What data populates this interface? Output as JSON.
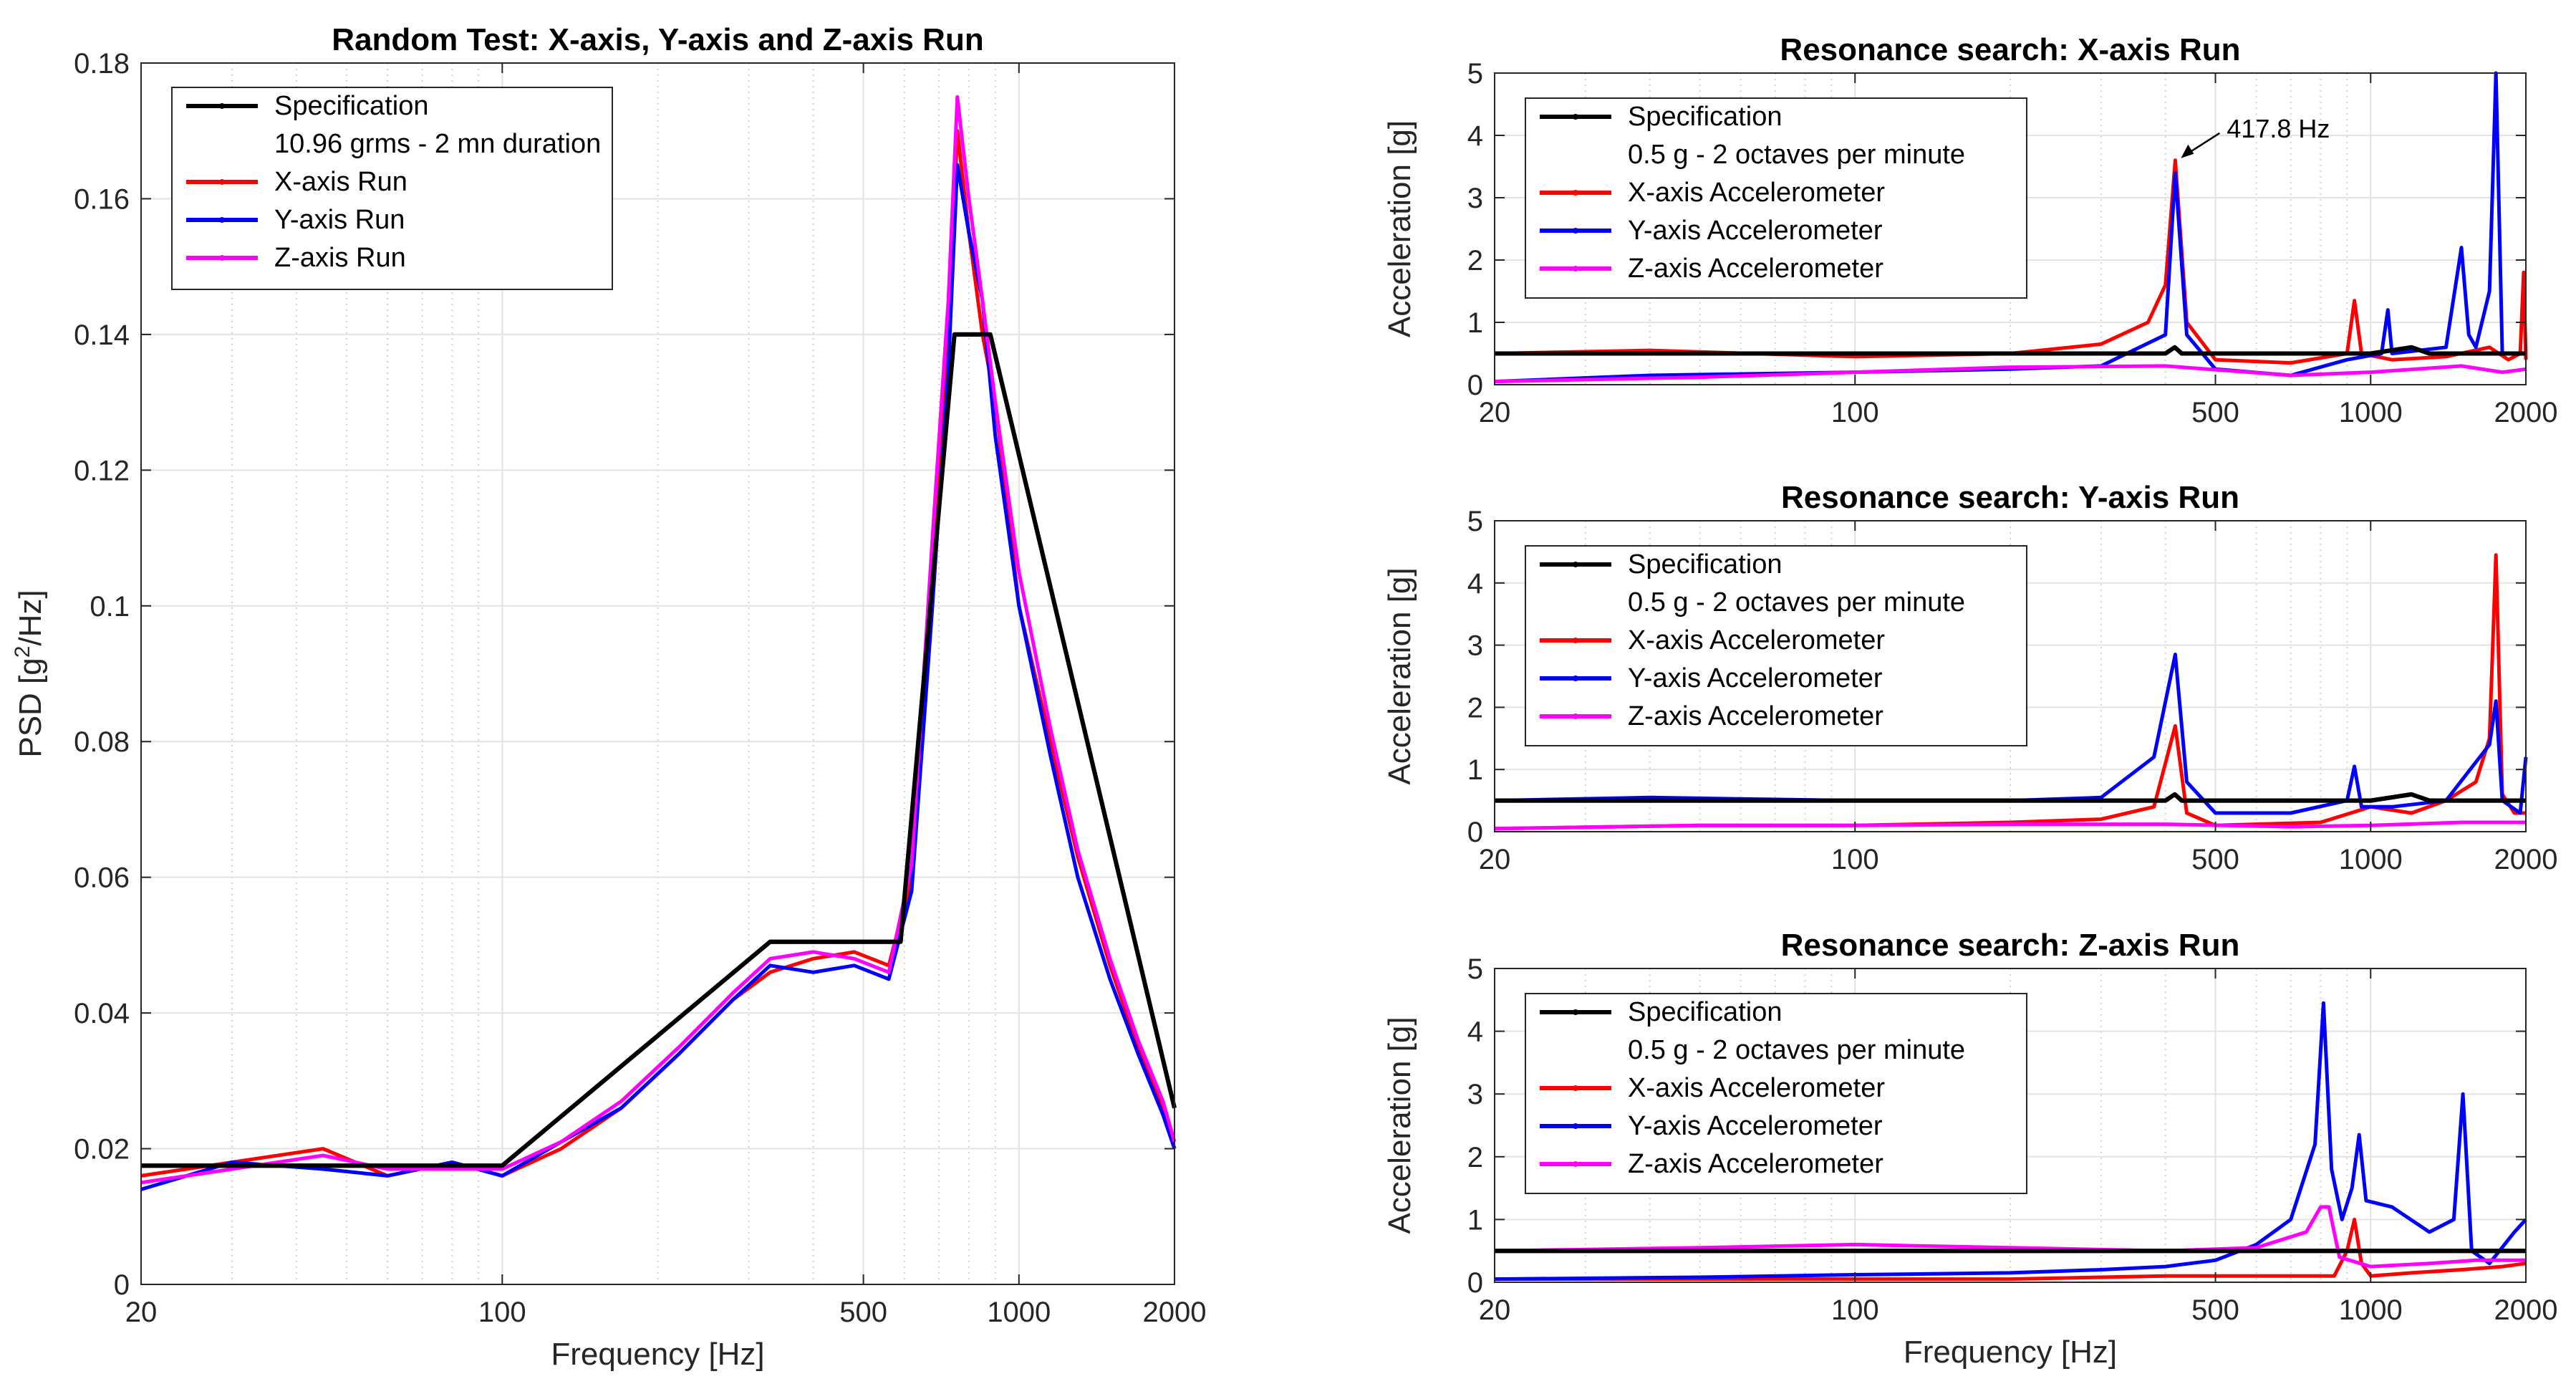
{
  "chart_data": [
    {
      "id": "main",
      "type": "line",
      "title": "Random Test: X-axis, Y-axis and Z-axis Run",
      "xlabel": "Frequency [Hz]",
      "ylabel_main": "PSD [g",
      "ylabel_sup": "2",
      "ylabel_tail": "/Hz]",
      "xscale": "log",
      "xlim": [
        20,
        2000
      ],
      "ylim": [
        0,
        0.18
      ],
      "xticks": [
        20,
        100,
        500,
        1000,
        2000
      ],
      "xtick_labels": [
        "20",
        "100",
        "500",
        "1000",
        "2000"
      ],
      "yticks": [
        0,
        0.02,
        0.04,
        0.06,
        0.08,
        0.1,
        0.12,
        0.14,
        0.16,
        0.18
      ],
      "ytick_labels": [
        "0",
        "0.02",
        "0.04",
        "0.06",
        "0.08",
        "0.1",
        "0.12",
        "0.14",
        "0.16",
        "0.18"
      ],
      "grid": true,
      "legend_position": "top-left",
      "legend": [
        {
          "label": "Specification",
          "color": "#000000",
          "marker": true
        },
        {
          "label": "10.96 grms - 2 mn duration",
          "color": null,
          "marker": false
        },
        {
          "label": "X-axis Run",
          "color": "#ff0000",
          "marker": true
        },
        {
          "label": "Y-axis Run",
          "color": "#0000ff",
          "marker": true
        },
        {
          "label": "Z-axis Run",
          "color": "#ff00ff",
          "marker": true
        }
      ],
      "series": [
        {
          "name": "Specification",
          "color": "#000000",
          "x": [
            20,
            100,
            330,
            590,
            750,
            880,
            2000
          ],
          "y": [
            0.0175,
            0.0175,
            0.0505,
            0.0505,
            0.14,
            0.14,
            0.026
          ]
        },
        {
          "name": "X-axis Run",
          "color": "#ff0000",
          "x": [
            20,
            30,
            45,
            60,
            80,
            100,
            130,
            170,
            220,
            280,
            330,
            400,
            480,
            560,
            620,
            680,
            730,
            760,
            800,
            850,
            900,
            1000,
            1150,
            1300,
            1500,
            1700,
            1900,
            2000
          ],
          "y": [
            0.016,
            0.018,
            0.02,
            0.016,
            0.018,
            0.016,
            0.02,
            0.026,
            0.034,
            0.042,
            0.046,
            0.048,
            0.049,
            0.047,
            0.06,
            0.105,
            0.14,
            0.17,
            0.155,
            0.14,
            0.13,
            0.1,
            0.08,
            0.063,
            0.047,
            0.035,
            0.026,
            0.02
          ]
        },
        {
          "name": "Y-axis Run",
          "color": "#0000ff",
          "x": [
            20,
            30,
            45,
            60,
            80,
            100,
            130,
            170,
            220,
            280,
            330,
            400,
            480,
            560,
            620,
            680,
            730,
            760,
            800,
            850,
            900,
            1000,
            1150,
            1300,
            1500,
            1700,
            1900,
            2000
          ],
          "y": [
            0.014,
            0.018,
            0.017,
            0.016,
            0.018,
            0.016,
            0.021,
            0.026,
            0.034,
            0.042,
            0.047,
            0.046,
            0.047,
            0.045,
            0.058,
            0.1,
            0.135,
            0.165,
            0.155,
            0.145,
            0.125,
            0.1,
            0.078,
            0.06,
            0.045,
            0.034,
            0.025,
            0.02
          ]
        },
        {
          "name": "Z-axis Run",
          "color": "#ff00ff",
          "x": [
            20,
            30,
            45,
            60,
            80,
            100,
            130,
            170,
            220,
            280,
            330,
            400,
            480,
            560,
            620,
            680,
            730,
            760,
            800,
            850,
            900,
            1000,
            1150,
            1300,
            1500,
            1700,
            1900,
            2000
          ],
          "y": [
            0.015,
            0.017,
            0.019,
            0.017,
            0.017,
            0.017,
            0.021,
            0.027,
            0.035,
            0.043,
            0.048,
            0.049,
            0.048,
            0.046,
            0.062,
            0.11,
            0.145,
            0.175,
            0.16,
            0.145,
            0.13,
            0.105,
            0.082,
            0.064,
            0.048,
            0.036,
            0.027,
            0.021
          ]
        }
      ]
    },
    {
      "id": "resx",
      "type": "line",
      "title": "Resonance search: X-axis Run",
      "xlabel": "",
      "ylabel": "Acceleration [g]",
      "xscale": "log",
      "xlim": [
        20,
        2000
      ],
      "ylim": [
        0,
        5
      ],
      "xticks": [
        20,
        100,
        500,
        1000,
        2000
      ],
      "xtick_labels": [
        "20",
        "100",
        "500",
        "1000",
        "2000"
      ],
      "yticks": [
        0,
        1,
        2,
        3,
        4,
        5
      ],
      "ytick_labels": [
        "0",
        "1",
        "2",
        "3",
        "4",
        "5"
      ],
      "grid": true,
      "legend_position": "top-left",
      "legend": [
        {
          "label": "Specification",
          "color": "#000000",
          "marker": true
        },
        {
          "label": "0.5 g - 2 octaves per minute",
          "color": null,
          "marker": false
        },
        {
          "label": "X-axis Accelerometer",
          "color": "#ff0000",
          "marker": true
        },
        {
          "label": "Y-axis Accelerometer",
          "color": "#0000ff",
          "marker": true
        },
        {
          "label": "Z-axis Accelerometer",
          "color": "#ff00ff",
          "marker": true
        }
      ],
      "annotation": {
        "text": "417.8 Hz",
        "x": 417.8,
        "y": 3.6
      },
      "series": [
        {
          "name": "Specification",
          "color": "#000000",
          "x": [
            20,
            100,
            300,
            400,
            417,
            430,
            600,
            1000,
            1200,
            1300,
            2000
          ],
          "y": [
            0.5,
            0.5,
            0.5,
            0.5,
            0.6,
            0.5,
            0.5,
            0.5,
            0.6,
            0.5,
            0.5
          ]
        },
        {
          "name": "X-axis Accelerometer",
          "color": "#ff0000",
          "x": [
            20,
            40,
            100,
            200,
            300,
            370,
            400,
            417.8,
            440,
            500,
            700,
            900,
            930,
            960,
            1100,
            1400,
            1700,
            1850,
            1950,
            1980,
            2000
          ],
          "y": [
            0.5,
            0.55,
            0.45,
            0.5,
            0.65,
            1.0,
            1.6,
            3.6,
            1.0,
            0.4,
            0.35,
            0.5,
            1.35,
            0.5,
            0.4,
            0.45,
            0.6,
            0.4,
            0.5,
            1.8,
            0.4
          ]
        },
        {
          "name": "Y-axis Accelerometer",
          "color": "#0000ff",
          "x": [
            20,
            40,
            100,
            200,
            300,
            400,
            417.8,
            440,
            500,
            700,
            900,
            1050,
            1080,
            1100,
            1400,
            1500,
            1550,
            1600,
            1700,
            1750,
            1800,
            2000
          ],
          "y": [
            0.05,
            0.15,
            0.2,
            0.25,
            0.3,
            0.8,
            3.4,
            0.8,
            0.25,
            0.15,
            0.4,
            0.5,
            1.2,
            0.5,
            0.6,
            2.2,
            0.8,
            0.6,
            1.5,
            5.0,
            0.5,
            0.5
          ]
        },
        {
          "name": "Z-axis Accelerometer",
          "color": "#ff00ff",
          "x": [
            20,
            50,
            100,
            200,
            400,
            700,
            1000,
            1500,
            1800,
            2000
          ],
          "y": [
            0.05,
            0.12,
            0.2,
            0.28,
            0.3,
            0.15,
            0.2,
            0.3,
            0.2,
            0.25
          ]
        }
      ]
    },
    {
      "id": "resy",
      "type": "line",
      "title": "Resonance search: Y-axis Run",
      "xlabel": "",
      "ylabel": "Acceleration [g]",
      "xscale": "log",
      "xlim": [
        20,
        2000
      ],
      "ylim": [
        0,
        5
      ],
      "xticks": [
        20,
        100,
        500,
        1000,
        2000
      ],
      "xtick_labels": [
        "20",
        "100",
        "500",
        "1000",
        "2000"
      ],
      "yticks": [
        0,
        1,
        2,
        3,
        4,
        5
      ],
      "ytick_labels": [
        "0",
        "1",
        "2",
        "3",
        "4",
        "5"
      ],
      "grid": true,
      "legend_position": "top-left",
      "legend": [
        {
          "label": "Specification",
          "color": "#000000",
          "marker": true
        },
        {
          "label": "0.5 g - 2 octaves per minute",
          "color": null,
          "marker": false
        },
        {
          "label": "X-axis Accelerometer",
          "color": "#ff0000",
          "marker": true
        },
        {
          "label": "Y-axis Accelerometer",
          "color": "#0000ff",
          "marker": true
        },
        {
          "label": "Z-axis Accelerometer",
          "color": "#ff00ff",
          "marker": true
        }
      ],
      "series": [
        {
          "name": "Specification",
          "color": "#000000",
          "x": [
            20,
            100,
            400,
            417,
            430,
            1000,
            1200,
            1300,
            2000
          ],
          "y": [
            0.5,
            0.5,
            0.5,
            0.6,
            0.5,
            0.5,
            0.6,
            0.5,
            0.5
          ]
        },
        {
          "name": "X-axis Accelerometer",
          "color": "#ff0000",
          "x": [
            20,
            50,
            100,
            200,
            300,
            380,
            417.8,
            440,
            500,
            800,
            1000,
            1200,
            1400,
            1600,
            1700,
            1750,
            1800,
            1900,
            2000
          ],
          "y": [
            0.05,
            0.1,
            0.1,
            0.15,
            0.2,
            0.4,
            1.7,
            0.3,
            0.1,
            0.15,
            0.4,
            0.3,
            0.5,
            0.8,
            1.5,
            4.45,
            0.6,
            0.3,
            0.3
          ]
        },
        {
          "name": "Y-axis Accelerometer",
          "color": "#0000ff",
          "x": [
            20,
            40,
            100,
            200,
            300,
            380,
            417.8,
            440,
            500,
            700,
            900,
            930,
            960,
            1100,
            1400,
            1700,
            1750,
            1800,
            1950,
            2000
          ],
          "y": [
            0.5,
            0.55,
            0.5,
            0.5,
            0.55,
            1.2,
            2.85,
            0.8,
            0.3,
            0.3,
            0.5,
            1.05,
            0.4,
            0.4,
            0.5,
            1.4,
            2.1,
            0.5,
            0.3,
            1.2
          ]
        },
        {
          "name": "Z-axis Accelerometer",
          "color": "#ff00ff",
          "x": [
            20,
            50,
            100,
            200,
            400,
            700,
            1000,
            1500,
            2000
          ],
          "y": [
            0.05,
            0.1,
            0.1,
            0.12,
            0.12,
            0.08,
            0.1,
            0.15,
            0.15
          ]
        }
      ]
    },
    {
      "id": "resz",
      "type": "line",
      "title": "Resonance search: Z-axis Run",
      "xlabel": "Frequency [Hz]",
      "ylabel": "Acceleration [g]",
      "xscale": "log",
      "xlim": [
        20,
        2000
      ],
      "ylim": [
        0,
        5
      ],
      "xticks": [
        20,
        100,
        500,
        1000,
        2000
      ],
      "xtick_labels": [
        "20",
        "100",
        "500",
        "1000",
        "2000"
      ],
      "yticks": [
        0,
        1,
        2,
        3,
        4,
        5
      ],
      "ytick_labels": [
        "0",
        "1",
        "2",
        "3",
        "4",
        "5"
      ],
      "grid": true,
      "legend_position": "top-left",
      "legend": [
        {
          "label": "Specification",
          "color": "#000000",
          "marker": true
        },
        {
          "label": "0.5 g - 2 octaves per minute",
          "color": null,
          "marker": false
        },
        {
          "label": "X-axis Accelerometer",
          "color": "#ff0000",
          "marker": true
        },
        {
          "label": "Y-axis Accelerometer",
          "color": "#0000ff",
          "marker": true
        },
        {
          "label": "Z-axis Accelerometer",
          "color": "#ff00ff",
          "marker": true
        }
      ],
      "series": [
        {
          "name": "Specification",
          "color": "#000000",
          "x": [
            20,
            100,
            500,
            1000,
            1200,
            2000
          ],
          "y": [
            0.5,
            0.5,
            0.5,
            0.5,
            0.5,
            0.5
          ]
        },
        {
          "name": "X-axis Accelerometer",
          "color": "#ff0000",
          "x": [
            20,
            50,
            100,
            200,
            400,
            700,
            850,
            900,
            930,
            960,
            1000,
            1200,
            1500,
            1800,
            2000
          ],
          "y": [
            0.05,
            0.05,
            0.05,
            0.05,
            0.1,
            0.1,
            0.1,
            0.5,
            1.0,
            0.3,
            0.1,
            0.15,
            0.2,
            0.25,
            0.3
          ]
        },
        {
          "name": "Y-axis Accelerometer",
          "color": "#0000ff",
          "x": [
            20,
            50,
            100,
            200,
            300,
            400,
            500,
            600,
            700,
            780,
            810,
            840,
            880,
            920,
            950,
            980,
            1100,
            1300,
            1450,
            1510,
            1570,
            1700,
            1900,
            2000
          ],
          "y": [
            0.05,
            0.08,
            0.12,
            0.15,
            0.2,
            0.25,
            0.35,
            0.6,
            1.0,
            2.2,
            4.45,
            1.8,
            1.0,
            1.5,
            2.35,
            1.3,
            1.2,
            0.8,
            1.0,
            3.0,
            0.5,
            0.3,
            0.8,
            1.0
          ]
        },
        {
          "name": "Z-axis Accelerometer",
          "color": "#ff00ff",
          "x": [
            20,
            50,
            100,
            200,
            400,
            600,
            750,
            800,
            830,
            870,
            1000,
            1300,
            1600,
            2000
          ],
          "y": [
            0.5,
            0.55,
            0.6,
            0.55,
            0.5,
            0.55,
            0.8,
            1.2,
            1.2,
            0.4,
            0.25,
            0.3,
            0.35,
            0.35
          ]
        }
      ]
    }
  ]
}
